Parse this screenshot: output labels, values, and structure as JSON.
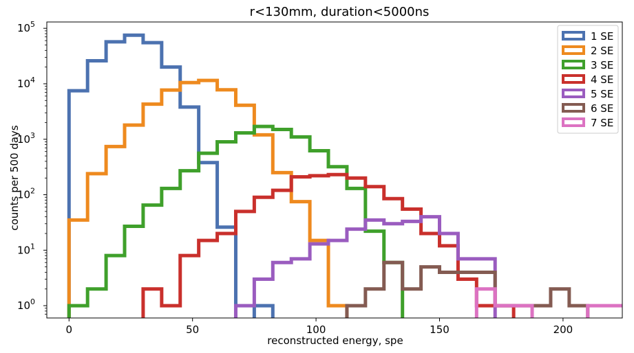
{
  "chart_data": {
    "type": "histogram-step",
    "title": "r<130mm, duration<5000ns",
    "xlabel": "reconstructed energy, spe",
    "ylabel": "counts per 500 days",
    "xlim": [
      -9,
      224
    ],
    "ylim": [
      0.6,
      130000
    ],
    "yscale": "log",
    "grid": false,
    "legend_position": "top-right",
    "x_ticks": [
      {
        "value": 0,
        "label": "0"
      },
      {
        "value": 50,
        "label": "50"
      },
      {
        "value": 100,
        "label": "100"
      },
      {
        "value": 150,
        "label": "150"
      },
      {
        "value": 200,
        "label": "200"
      }
    ],
    "y_ticks": [
      {
        "value": 1,
        "base": "10",
        "exp": "0"
      },
      {
        "value": 10,
        "base": "10",
        "exp": "1"
      },
      {
        "value": 100,
        "base": "10",
        "exp": "2"
      },
      {
        "value": 1000,
        "base": "10",
        "exp": "3"
      },
      {
        "value": 10000,
        "base": "10",
        "exp": "4"
      },
      {
        "value": 100000,
        "base": "10",
        "exp": "5"
      }
    ],
    "series": [
      {
        "name": "1 SE",
        "color": "#4c72b0",
        "bin_edges": [
          0,
          7.5,
          15,
          22.5,
          30,
          37.5,
          45,
          52.5,
          60,
          67.5,
          75,
          82.5
        ],
        "counts": [
          7500,
          26000,
          57000,
          75000,
          55000,
          20000,
          3800,
          380,
          26,
          0,
          1
        ]
      },
      {
        "name": "2 SE",
        "color": "#ee8a1f",
        "bin_edges": [
          0,
          7.5,
          15,
          22.5,
          30,
          37.5,
          45,
          52.5,
          60,
          67.5,
          75,
          82.5,
          90,
          97.5,
          105,
          112.5
        ],
        "counts": [
          35,
          240,
          740,
          1800,
          4300,
          7700,
          10500,
          11500,
          7800,
          4100,
          1200,
          250,
          75,
          15,
          1
        ]
      },
      {
        "name": "3 SE",
        "color": "#3fa02b",
        "bin_edges": [
          0,
          7.5,
          15,
          22.5,
          30,
          37.5,
          45,
          52.5,
          60,
          67.5,
          75,
          82.5,
          90,
          97.5,
          105,
          112.5,
          120,
          127.5,
          135
        ],
        "counts": [
          1,
          2,
          8,
          27,
          65,
          130,
          270,
          560,
          900,
          1300,
          1700,
          1500,
          1100,
          620,
          320,
          130,
          22,
          6
        ]
      },
      {
        "name": "4 SE",
        "color": "#c9302c",
        "bin_edges": [
          30,
          37.5,
          45,
          52.5,
          60,
          67.5,
          75,
          82.5,
          90,
          97.5,
          105,
          112.5,
          120,
          127.5,
          135,
          142.5,
          150,
          157.5,
          165,
          172.5,
          180
        ],
        "counts": [
          2,
          1,
          8,
          15,
          20,
          50,
          90,
          120,
          210,
          220,
          230,
          200,
          140,
          85,
          55,
          20,
          12,
          3,
          1,
          1
        ]
      },
      {
        "name": "5 SE",
        "color": "#9a5cbf",
        "bin_edges": [
          67.5,
          75,
          82.5,
          90,
          97.5,
          105,
          112.5,
          120,
          127.5,
          135,
          142.5,
          150,
          157.5,
          165,
          172.5
        ],
        "counts": [
          1,
          3,
          6,
          7,
          13,
          15,
          24,
          35,
          30,
          33,
          40,
          20,
          7,
          7
        ]
      },
      {
        "name": "6 SE",
        "color": "#845b52",
        "bin_edges": [
          112.5,
          120,
          127.5,
          135,
          142.5,
          150,
          157.5,
          165,
          172.5,
          180,
          187.5,
          195,
          202.5,
          210
        ],
        "counts": [
          1,
          2,
          6,
          2,
          5,
          4,
          4,
          4,
          1,
          1,
          1,
          2,
          1
        ]
      },
      {
        "name": "7 SE",
        "color": "#dc72c2",
        "bin_edges": [
          165,
          172.5,
          180,
          187.5,
          195,
          202.5,
          210,
          217.5,
          225
        ],
        "counts": [
          2,
          1,
          1,
          0,
          0,
          0,
          1,
          1
        ]
      }
    ]
  }
}
